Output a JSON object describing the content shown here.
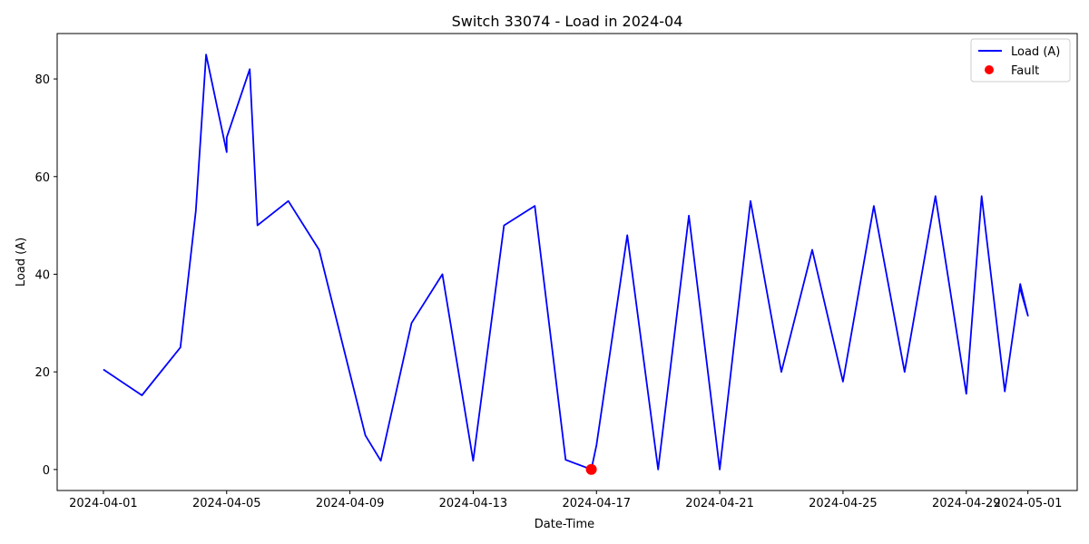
{
  "chart_data": {
    "type": "line",
    "title": "Switch 33074 - Load in 2024-04",
    "xlabel": "Date-Time",
    "ylabel": "Load (A)",
    "x_ticks": [
      "2024-04-01",
      "2024-04-05",
      "2024-04-09",
      "2024-04-13",
      "2024-04-17",
      "2024-04-21",
      "2024-04-25",
      "2024-04-29",
      "2024-05-01"
    ],
    "x_tick_days": [
      0,
      4,
      8,
      12,
      16,
      20,
      24,
      28,
      30
    ],
    "y_ticks": [
      0,
      20,
      40,
      60,
      80
    ],
    "xlim": [
      -1.5,
      31.6
    ],
    "ylim": [
      -4.3,
      89.3
    ],
    "grid": false,
    "legend_position": "top-right",
    "series": [
      {
        "name": "Load (A)",
        "kind": "line",
        "color": "#0000ff",
        "points": [
          [
            "2024-04-01 00:00",
            20.5
          ],
          [
            "2024-04-02 06:00",
            15.2
          ],
          [
            "2024-04-03 12:00",
            25.0
          ],
          [
            "2024-04-04 00:00",
            53.0
          ],
          [
            "2024-04-04 08:00",
            85.0
          ],
          [
            "2024-04-05 00:00",
            65.0
          ],
          [
            "2024-04-05 00:00",
            68.0
          ],
          [
            "2024-04-05 18:00",
            82.0
          ],
          [
            "2024-04-06 00:00",
            50.0
          ],
          [
            "2024-04-07 00:00",
            55.0
          ],
          [
            "2024-04-08 00:00",
            45.0
          ],
          [
            "2024-04-09 12:00",
            7.0
          ],
          [
            "2024-04-10 00:00",
            1.8
          ],
          [
            "2024-04-11 00:00",
            30.0
          ],
          [
            "2024-04-12 00:00",
            40.0
          ],
          [
            "2024-04-13 00:00",
            1.8
          ],
          [
            "2024-04-14 00:00",
            50.0
          ],
          [
            "2024-04-15 00:00",
            54.0
          ],
          [
            "2024-04-16 00:00",
            2.0
          ],
          [
            "2024-04-16 20:00",
            0.0
          ],
          [
            "2024-04-17 00:00",
            5.0
          ],
          [
            "2024-04-18 00:00",
            48.0
          ],
          [
            "2024-04-19 00:00",
            0.0
          ],
          [
            "2024-04-20 00:00",
            52.0
          ],
          [
            "2024-04-21 00:00",
            0.0
          ],
          [
            "2024-04-22 00:00",
            55.0
          ],
          [
            "2024-04-23 00:00",
            20.0
          ],
          [
            "2024-04-24 00:00",
            45.0
          ],
          [
            "2024-04-25 00:00",
            18.0
          ],
          [
            "2024-04-26 00:00",
            54.0
          ],
          [
            "2024-04-27 00:00",
            20.0
          ],
          [
            "2024-04-28 00:00",
            56.0
          ],
          [
            "2024-04-29 00:00",
            15.5
          ],
          [
            "2024-04-29 12:00",
            56.0
          ],
          [
            "2024-04-30 06:00",
            16.0
          ],
          [
            "2024-04-30 18:00",
            38.0
          ],
          [
            "2024-05-01 00:00",
            31.5
          ],
          [
            "2024-04-30 18:00",
            37.0
          ]
        ]
      },
      {
        "name": "Fault",
        "kind": "scatter",
        "color": "#ff0000",
        "points": [
          [
            "2024-04-16 20:00",
            0.0
          ]
        ]
      }
    ]
  }
}
